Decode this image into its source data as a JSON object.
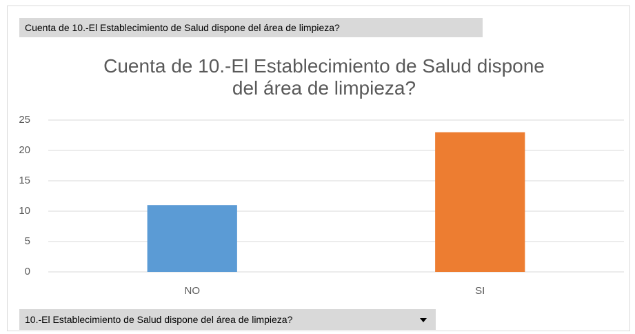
{
  "chart_data": {
    "type": "bar",
    "value_field_button": "Cuenta de 10.-El Establecimiento de Salud dispone del área de limpieza?",
    "title": "Cuenta de 10.-El Establecimiento de Salud dispone del área de limpieza?",
    "categories": [
      "NO",
      "SI"
    ],
    "values": [
      11,
      23
    ],
    "colors": [
      "#5b9bd5",
      "#ed7d31"
    ],
    "ylim": [
      0,
      25
    ],
    "yticks": [
      0,
      5,
      10,
      15,
      20,
      25
    ],
    "grid": true,
    "axis_field_button": "10.-El Establecimiento de Salud dispone del área de limpieza?"
  }
}
